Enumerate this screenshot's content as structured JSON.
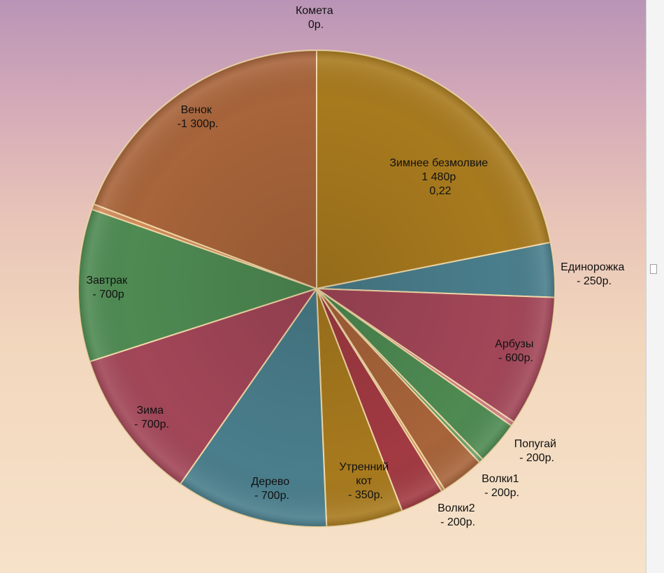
{
  "chart_data": {
    "type": "pie",
    "slices": [
      {
        "label": "Зимнее безмолвие",
        "value_text": "1 480р",
        "extra_text": "0,22",
        "value": 1480,
        "color": "#a87a1e"
      },
      {
        "label": "Единорожка",
        "value_text": "- 250р.",
        "value": 250,
        "color": "#4a7e8c"
      },
      {
        "label": "Арбузы",
        "value_text": "- 600р.",
        "value": 600,
        "color": "#a24658"
      },
      {
        "label": "",
        "value_text": "",
        "value": 20,
        "color": "#cf7b87"
      },
      {
        "label": "Попугай",
        "value_text": "- 200р.",
        "value": 200,
        "color": "#4e8a52"
      },
      {
        "label": "",
        "value_text": "",
        "value": 20,
        "color": "#6aa06a"
      },
      {
        "label": "Волки1",
        "value_text": "- 200р.",
        "value": 200,
        "color": "#a8643a"
      },
      {
        "label": "",
        "value_text": "",
        "value": 15,
        "color": "#d08a5a"
      },
      {
        "label": "Волки2",
        "value_text": "- 200р.",
        "value": 200,
        "color": "#a23a42"
      },
      {
        "label": "Утренний кот",
        "value_text": "- 350р.",
        "value": 350,
        "color": "#a87a1e"
      },
      {
        "label": "Дерево",
        "value_text": "- 700р.",
        "value": 700,
        "color": "#4a7e8c"
      },
      {
        "label": "Зима",
        "value_text": "- 700р.",
        "value": 700,
        "color": "#a24658"
      },
      {
        "label": "Завтрак",
        "value_text": "- 700р",
        "value": 700,
        "color": "#4e8a52"
      },
      {
        "label": "",
        "value_text": "",
        "value": 25,
        "color": "#d08a5a"
      },
      {
        "label": "Венок",
        "value_text": "-1 300р.",
        "value": 1300,
        "color": "#a8643a"
      },
      {
        "label": "Комета",
        "value_text": "0р.",
        "value": 0,
        "color": "#a8643a"
      }
    ]
  }
}
